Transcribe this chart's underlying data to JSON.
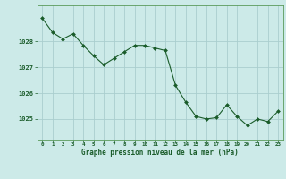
{
  "x": [
    0,
    1,
    2,
    3,
    4,
    5,
    6,
    7,
    8,
    9,
    10,
    11,
    12,
    13,
    14,
    15,
    16,
    17,
    18,
    19,
    20,
    21,
    22,
    23
  ],
  "y": [
    1028.9,
    1028.35,
    1028.1,
    1028.3,
    1027.85,
    1027.45,
    1027.1,
    1027.35,
    1027.6,
    1027.85,
    1027.85,
    1027.75,
    1027.65,
    1026.3,
    1025.65,
    1025.1,
    1025.0,
    1025.05,
    1025.55,
    1025.1,
    1024.75,
    1025.0,
    1024.9,
    1025.3
  ],
  "line_color": "#1a5c2a",
  "marker_color": "#1a5c2a",
  "bg_color": "#cceae8",
  "grid_color": "#aacece",
  "xlabel_ticks": [
    0,
    1,
    2,
    3,
    4,
    5,
    6,
    7,
    8,
    9,
    10,
    11,
    12,
    13,
    14,
    15,
    16,
    17,
    18,
    19,
    20,
    21,
    22,
    23
  ],
  "xtick_labels": [
    "0",
    "1",
    "2",
    "3",
    "4",
    "5",
    "6",
    "7",
    "8",
    "9",
    "10",
    "11",
    "12",
    "13",
    "14",
    "15",
    "16",
    "17",
    "18",
    "19",
    "20",
    "21",
    "22",
    "23"
  ],
  "yticks": [
    1025,
    1026,
    1027,
    1028
  ],
  "ytick_labels": [
    "1025",
    "1026",
    "1027",
    "1028"
  ],
  "ylim": [
    1024.2,
    1029.4
  ],
  "xlim": [
    -0.5,
    23.5
  ],
  "bottom_label": "Graphe pression niveau de la mer (hPa)",
  "label_color": "#1a5c2a",
  "tick_color": "#1a5c2a",
  "axis_color": "#5a9a5a"
}
